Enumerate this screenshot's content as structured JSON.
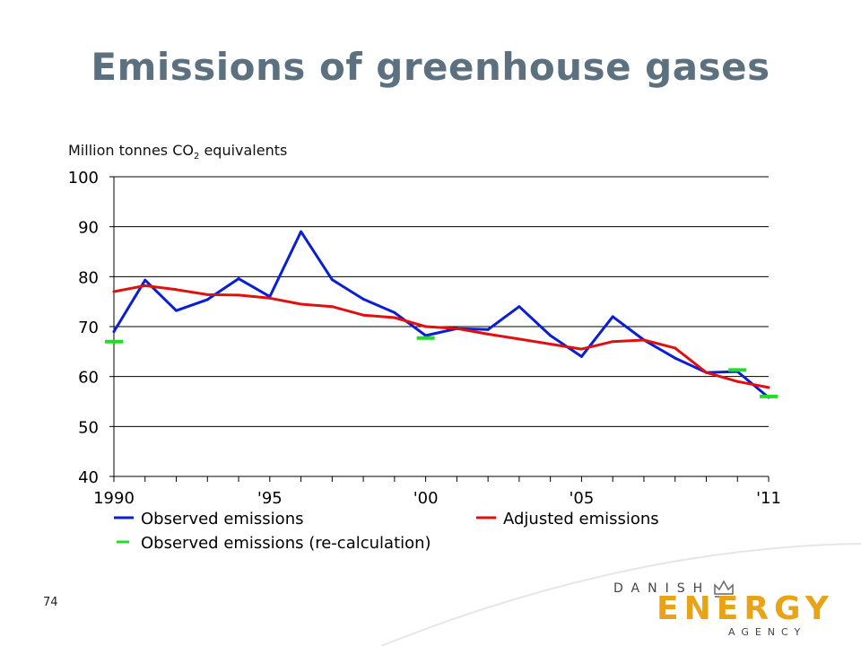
{
  "slide": {
    "title": "Emissions of greenhouse gases",
    "unit_label": "Million tonnes CO",
    "unit_sub": "2",
    "unit_suffix": " equivalents",
    "page_number": "74"
  },
  "logo": {
    "top": "DANISH",
    "main": "ENERGY",
    "bottom": "AGENCY",
    "color": "#e8a317"
  },
  "chart_data": {
    "type": "line",
    "ylim": [
      40,
      100
    ],
    "yticks": [
      40,
      50,
      60,
      70,
      80,
      90,
      100
    ],
    "xlim": [
      1990,
      2011
    ],
    "xtick_labels": [
      {
        "x": 1990,
        "label": "1990"
      },
      {
        "x": 1995,
        "label": "'95"
      },
      {
        "x": 2000,
        "label": "'00"
      },
      {
        "x": 2005,
        "label": "'05"
      },
      {
        "x": 2011,
        "label": "'11"
      }
    ],
    "grid": "horizontal",
    "legend_position": "bottom",
    "series": [
      {
        "name": "Observed emissions",
        "color": "#0a1ed2",
        "x": [
          1990,
          1991,
          1992,
          1993,
          1994,
          1995,
          1996,
          1997,
          1998,
          1999,
          2000,
          2001,
          2002,
          2003,
          2004,
          2005,
          2006,
          2007,
          2008,
          2009,
          2010,
          2011
        ],
        "values": [
          69.0,
          79.3,
          73.2,
          75.4,
          79.6,
          76.0,
          89.0,
          79.4,
          75.5,
          72.8,
          68.2,
          69.6,
          69.4,
          74.0,
          68.2,
          64.0,
          72.0,
          67.3,
          63.7,
          60.8,
          61.0,
          55.8
        ]
      },
      {
        "name": "Adjusted emissions",
        "color": "#e01010",
        "x": [
          1990,
          1991,
          1992,
          1993,
          1994,
          1995,
          1996,
          1997,
          1998,
          1999,
          2000,
          2001,
          2002,
          2003,
          2004,
          2005,
          2006,
          2007,
          2008,
          2009,
          2010,
          2011
        ],
        "values": [
          77.0,
          78.2,
          77.4,
          76.4,
          76.3,
          75.7,
          74.5,
          74.0,
          72.3,
          71.8,
          70.0,
          69.6,
          68.5,
          67.5,
          66.5,
          65.5,
          67.0,
          67.3,
          65.7,
          60.8,
          59.0,
          57.8
        ]
      },
      {
        "name": "Observed emissions (re-calculation)",
        "color": "#22dd22",
        "style": "markers",
        "x": [
          1990,
          2000,
          2010,
          2011
        ],
        "values": [
          67.0,
          67.7,
          61.3,
          56.0
        ]
      }
    ]
  }
}
